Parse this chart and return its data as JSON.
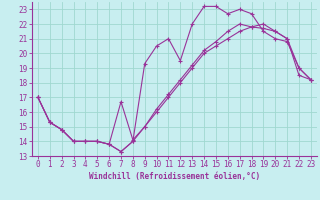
{
  "xlabel": "Windchill (Refroidissement éolien,°C)",
  "bg_color": "#c8eef0",
  "grid_color": "#a0d8d0",
  "line_color": "#993399",
  "spine_color": "#993399",
  "xlim": [
    -0.5,
    23.5
  ],
  "ylim": [
    13,
    23.5
  ],
  "xticks": [
    0,
    1,
    2,
    3,
    4,
    5,
    6,
    7,
    8,
    9,
    10,
    11,
    12,
    13,
    14,
    15,
    16,
    17,
    18,
    19,
    20,
    21,
    22,
    23
  ],
  "yticks": [
    13,
    14,
    15,
    16,
    17,
    18,
    19,
    20,
    21,
    22,
    23
  ],
  "line1_x": [
    0,
    1,
    2,
    3,
    4,
    5,
    6,
    7,
    8,
    9,
    10,
    11,
    12,
    13,
    14,
    15,
    16,
    17,
    18,
    19,
    20,
    21,
    22,
    23
  ],
  "line1_y": [
    17.0,
    15.3,
    14.8,
    14.0,
    14.0,
    14.0,
    13.8,
    13.3,
    14.0,
    19.3,
    20.5,
    21.0,
    19.5,
    22.0,
    23.2,
    23.2,
    22.7,
    23.0,
    22.7,
    21.5,
    21.0,
    20.8,
    19.0,
    18.2
  ],
  "line2_x": [
    0,
    1,
    2,
    3,
    4,
    5,
    6,
    7,
    8,
    9,
    10,
    11,
    12,
    13,
    14,
    15,
    16,
    17,
    18,
    19,
    20,
    21,
    22,
    23
  ],
  "line2_y": [
    17.0,
    15.3,
    14.8,
    14.0,
    14.0,
    14.0,
    13.8,
    16.7,
    14.1,
    15.0,
    16.2,
    17.2,
    18.2,
    19.2,
    20.2,
    20.8,
    21.5,
    22.0,
    21.8,
    21.7,
    21.5,
    21.0,
    18.5,
    18.2
  ],
  "line3_x": [
    0,
    1,
    2,
    3,
    4,
    5,
    6,
    7,
    8,
    9,
    10,
    11,
    12,
    13,
    14,
    15,
    16,
    17,
    18,
    19,
    20,
    21,
    22,
    23
  ],
  "line3_y": [
    17.0,
    15.3,
    14.8,
    14.0,
    14.0,
    14.0,
    13.8,
    13.3,
    14.0,
    15.0,
    16.0,
    17.0,
    18.0,
    19.0,
    20.0,
    20.5,
    21.0,
    21.5,
    21.8,
    22.0,
    21.5,
    21.0,
    19.0,
    18.2
  ],
  "tick_fontsize": 5.5,
  "xlabel_fontsize": 5.5,
  "linewidth": 0.8,
  "markersize": 2.5
}
